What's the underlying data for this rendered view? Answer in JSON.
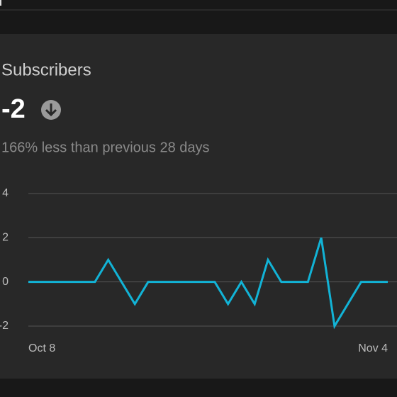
{
  "card": {
    "title": "Subscribers",
    "value": "-2",
    "comparison": "166% less than previous 28 days"
  },
  "chart_data": {
    "type": "line",
    "categories": [
      "Oct 8",
      null,
      null,
      null,
      null,
      null,
      null,
      null,
      null,
      null,
      null,
      null,
      null,
      null,
      null,
      null,
      null,
      null,
      null,
      null,
      null,
      null,
      null,
      null,
      null,
      null,
      null,
      "Nov 4"
    ],
    "series": [
      {
        "name": null,
        "color": "#12b3d6",
        "values": [
          0,
          0,
          0,
          0,
          0,
          0,
          1,
          0,
          -1,
          0,
          0,
          0,
          0,
          0,
          0,
          -1,
          0,
          -1,
          1,
          0,
          0,
          0,
          2,
          -2,
          -1,
          0,
          0,
          0
        ]
      }
    ],
    "ylim": [
      -2,
      4
    ],
    "yticks": [
      -2,
      0,
      2,
      4
    ],
    "grid": true
  }
}
